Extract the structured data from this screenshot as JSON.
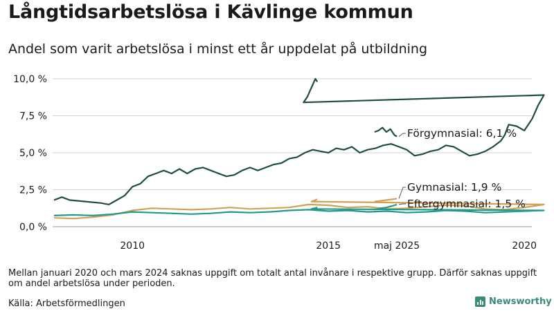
{
  "header": {
    "title": "Långtidsarbetslösa i Kävlinge kommun",
    "subtitle": "Andel som varit arbetslösa i minst ett år uppdelat på utbildning"
  },
  "footer": {
    "note": "Mellan januari 2020 och mars 2024 saknas uppgift om totalt antal invånare i respektive grupp. Därför saknas uppgift om andel arbetslösa under perioden.",
    "source": "Källa: Arbetsförmedlingen",
    "brand": "Newsworthy",
    "brand_icon": "bar-chart-logo-icon",
    "brand_color": "#3c8a7a"
  },
  "chart_data": {
    "type": "line",
    "title": "Långtidsarbetslösa i Kävlinge kommun",
    "subtitle": "Andel som varit arbetslösa i minst ett år uppdelat på utbildning",
    "xlabel": "",
    "ylabel": "",
    "ylim": [
      0,
      10
    ],
    "y_ticks": [
      {
        "value": 0,
        "label": "0,0 %"
      },
      {
        "value": 2.5,
        "label": "2,5 %"
      },
      {
        "value": 5,
        "label": "5,0 %"
      },
      {
        "value": 7.5,
        "label": "7,5 %"
      },
      {
        "value": 10,
        "label": "10,0 %"
      }
    ],
    "x_ticks": [
      {
        "value": 2010,
        "label": "2010"
      },
      {
        "value": 2015,
        "label": "2015"
      },
      {
        "value": 2020,
        "label": "2020"
      },
      {
        "value": 2025.33,
        "label": "maj 2025"
      }
    ],
    "x_axis_break": [
      2020.5,
      2024.1
    ],
    "grid": "horizontal",
    "legend": "direct labels at line ends (right)",
    "series": [
      {
        "name": "Förgymnasial",
        "end_label": "Förgymnasial: 6,1 %",
        "color": "#1e4d40",
        "segments": [
          [
            [
              2008.0,
              1.8
            ],
            [
              2008.2,
              2.0
            ],
            [
              2008.4,
              1.8
            ],
            [
              2008.8,
              1.7
            ],
            [
              2009.2,
              1.6
            ],
            [
              2009.4,
              1.5
            ],
            [
              2009.6,
              1.8
            ],
            [
              2009.8,
              2.1
            ],
            [
              2010.0,
              2.7
            ],
            [
              2010.2,
              2.9
            ],
            [
              2010.4,
              3.4
            ],
            [
              2010.6,
              3.6
            ],
            [
              2010.8,
              3.8
            ],
            [
              2011.0,
              3.6
            ],
            [
              2011.2,
              3.9
            ],
            [
              2011.4,
              3.6
            ],
            [
              2011.6,
              3.9
            ],
            [
              2011.8,
              4.0
            ],
            [
              2012.0,
              3.8
            ],
            [
              2012.2,
              3.6
            ],
            [
              2012.4,
              3.4
            ],
            [
              2012.6,
              3.5
            ],
            [
              2012.8,
              3.8
            ],
            [
              2013.0,
              4.0
            ],
            [
              2013.2,
              3.8
            ],
            [
              2013.4,
              4.0
            ],
            [
              2013.6,
              4.2
            ],
            [
              2013.8,
              4.3
            ],
            [
              2014.0,
              4.6
            ],
            [
              2014.2,
              4.7
            ],
            [
              2014.4,
              5.0
            ],
            [
              2014.6,
              5.2
            ],
            [
              2014.8,
              5.1
            ],
            [
              2015.0,
              5.0
            ],
            [
              2015.2,
              5.3
            ],
            [
              2015.4,
              5.2
            ],
            [
              2015.6,
              5.4
            ],
            [
              2015.8,
              5.0
            ],
            [
              2016.0,
              5.2
            ],
            [
              2016.2,
              5.3
            ],
            [
              2016.4,
              5.5
            ],
            [
              2016.6,
              5.6
            ],
            [
              2016.8,
              5.4
            ],
            [
              2017.0,
              5.2
            ],
            [
              2017.2,
              4.8
            ],
            [
              2017.4,
              4.9
            ],
            [
              2017.6,
              5.1
            ],
            [
              2017.8,
              5.2
            ],
            [
              2018.0,
              5.5
            ],
            [
              2018.2,
              5.4
            ],
            [
              2018.4,
              5.1
            ],
            [
              2018.6,
              4.8
            ],
            [
              2018.8,
              4.9
            ],
            [
              2019.0,
              5.1
            ],
            [
              2019.2,
              5.4
            ],
            [
              2019.4,
              5.8
            ],
            [
              2019.5,
              6.2
            ],
            [
              2019.6,
              6.9
            ],
            [
              2019.8,
              6.8
            ],
            [
              2020.0,
              6.5
            ],
            [
              2020.2,
              7.3
            ],
            [
              2020.35,
              8.2
            ],
            [
              2020.5,
              8.9
            ],
            [
              2020.6,
              8.4
            ],
            [
              2020.8,
              8.8
            ],
            [
              2021.0,
              9.4
            ],
            [
              2021.2,
              10.0
            ],
            [
              2021.3,
              9.8
            ]
          ],
          [
            [
              2024.2,
              6.4
            ],
            [
              2024.4,
              6.5
            ],
            [
              2024.6,
              6.7
            ],
            [
              2024.8,
              6.4
            ],
            [
              2025.0,
              6.6
            ],
            [
              2025.2,
              6.2
            ],
            [
              2025.33,
              6.1
            ]
          ]
        ]
      },
      {
        "name": "Gymnasial",
        "end_label": "Gymnasial: 1,9 %",
        "color": "#d1a055",
        "segments": [
          [
            [
              2008.0,
              0.6
            ],
            [
              2008.5,
              0.55
            ],
            [
              2009.0,
              0.65
            ],
            [
              2009.5,
              0.8
            ],
            [
              2010.0,
              1.1
            ],
            [
              2010.5,
              1.25
            ],
            [
              2011.0,
              1.2
            ],
            [
              2011.5,
              1.15
            ],
            [
              2012.0,
              1.2
            ],
            [
              2012.5,
              1.3
            ],
            [
              2013.0,
              1.2
            ],
            [
              2013.5,
              1.25
            ],
            [
              2014.0,
              1.3
            ],
            [
              2014.5,
              1.5
            ],
            [
              2015.0,
              1.45
            ],
            [
              2015.5,
              1.3
            ],
            [
              2016.0,
              1.35
            ],
            [
              2016.5,
              1.2
            ],
            [
              2017.0,
              1.25
            ],
            [
              2017.5,
              1.35
            ],
            [
              2018.0,
              1.45
            ],
            [
              2018.5,
              1.4
            ],
            [
              2019.0,
              1.2
            ],
            [
              2019.5,
              1.15
            ],
            [
              2020.0,
              1.3
            ],
            [
              2020.5,
              1.5
            ],
            [
              2021.0,
              1.7
            ],
            [
              2021.3,
              1.85
            ]
          ],
          [
            [
              2024.2,
              1.7
            ],
            [
              2024.5,
              1.75
            ],
            [
              2024.8,
              1.8
            ],
            [
              2025.1,
              1.85
            ],
            [
              2025.33,
              1.9
            ]
          ]
        ]
      },
      {
        "name": "Eftergymnasial",
        "end_label": "Eftergymnasial: 1,5 %",
        "color": "#1f9a8a",
        "segments": [
          [
            [
              2008.0,
              0.75
            ],
            [
              2008.5,
              0.8
            ],
            [
              2009.0,
              0.75
            ],
            [
              2009.5,
              0.85
            ],
            [
              2010.0,
              1.0
            ],
            [
              2010.5,
              0.95
            ],
            [
              2011.0,
              0.9
            ],
            [
              2011.5,
              0.85
            ],
            [
              2012.0,
              0.9
            ],
            [
              2012.5,
              1.0
            ],
            [
              2013.0,
              0.95
            ],
            [
              2013.5,
              1.0
            ],
            [
              2014.0,
              1.1
            ],
            [
              2014.5,
              1.15
            ],
            [
              2015.0,
              1.05
            ],
            [
              2015.5,
              1.1
            ],
            [
              2016.0,
              1.0
            ],
            [
              2016.5,
              1.05
            ],
            [
              2017.0,
              0.95
            ],
            [
              2017.5,
              1.0
            ],
            [
              2018.0,
              1.1
            ],
            [
              2018.5,
              1.05
            ],
            [
              2019.0,
              0.95
            ],
            [
              2019.5,
              1.0
            ],
            [
              2020.0,
              1.05
            ],
            [
              2020.5,
              1.1
            ],
            [
              2021.0,
              1.2
            ],
            [
              2021.3,
              1.3
            ]
          ],
          [
            [
              2024.2,
              1.15
            ],
            [
              2024.5,
              1.25
            ],
            [
              2024.8,
              1.3
            ],
            [
              2025.1,
              1.4
            ],
            [
              2025.33,
              1.5
            ]
          ]
        ]
      }
    ]
  }
}
